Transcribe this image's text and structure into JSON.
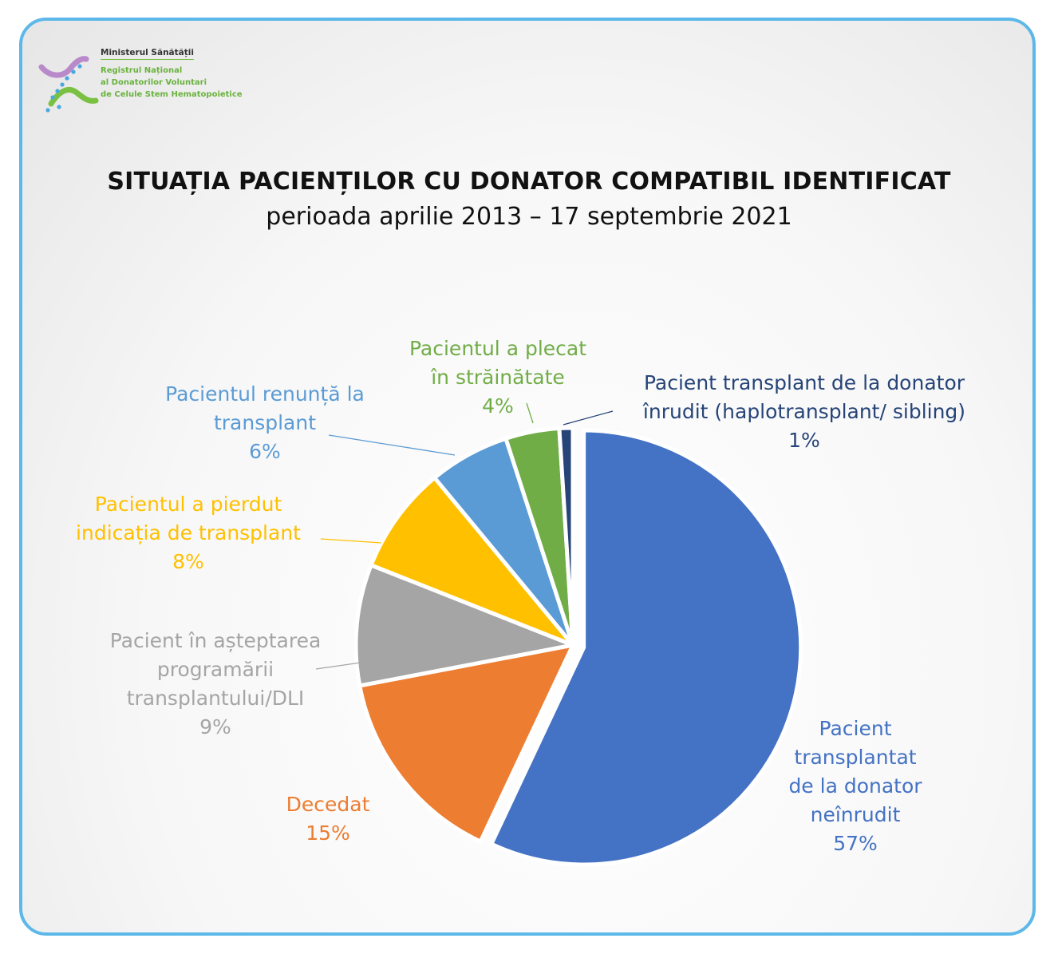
{
  "logo": {
    "ministry": "Ministerul Sănătății",
    "line1": "Registrul Național",
    "line2": "al Donatorilor Voluntari",
    "line3": "de Celule Stem Hematopoietice"
  },
  "chart_data": {
    "type": "pie",
    "title": "SITUAȚIA PACIENȚILOR CU DONATOR COMPATIBIL IDENTIFICAT",
    "subtitle": "perioada aprilie 2013 – 17 septembrie 2021",
    "slices": [
      {
        "label": "Pacient\ntransplantat\nde la donator\nneînrudit",
        "value": 57,
        "pct_label": "57%",
        "color": "#4472c4"
      },
      {
        "label": "Decedat",
        "value": 15,
        "pct_label": "15%",
        "color": "#ed7d31"
      },
      {
        "label": "Pacient în așteptarea\nprogramării\ntransplantului/DLI",
        "value": 9,
        "pct_label": "9%",
        "color": "#a5a5a5"
      },
      {
        "label": "Pacientul a pierdut\nindicația de transplant",
        "value": 8,
        "pct_label": "8%",
        "color": "#ffc000"
      },
      {
        "label": "Pacientul renunță la\ntransplant",
        "value": 6,
        "pct_label": "6%",
        "color": "#5b9bd5"
      },
      {
        "label": "Pacientul a plecat\nîn străinătate",
        "value": 4,
        "pct_label": "4%",
        "color": "#70ad47"
      },
      {
        "label": "Pacient transplant de la donator\nînrudit (haplotransplant/ sibling)",
        "value": 1,
        "pct_label": "1%",
        "color": "#264478"
      }
    ],
    "label_colors": [
      "#4472c4",
      "#ed7d31",
      "#a5a5a5",
      "#ffc000",
      "#5b9bd5",
      "#70ad47",
      "#264478"
    ]
  }
}
